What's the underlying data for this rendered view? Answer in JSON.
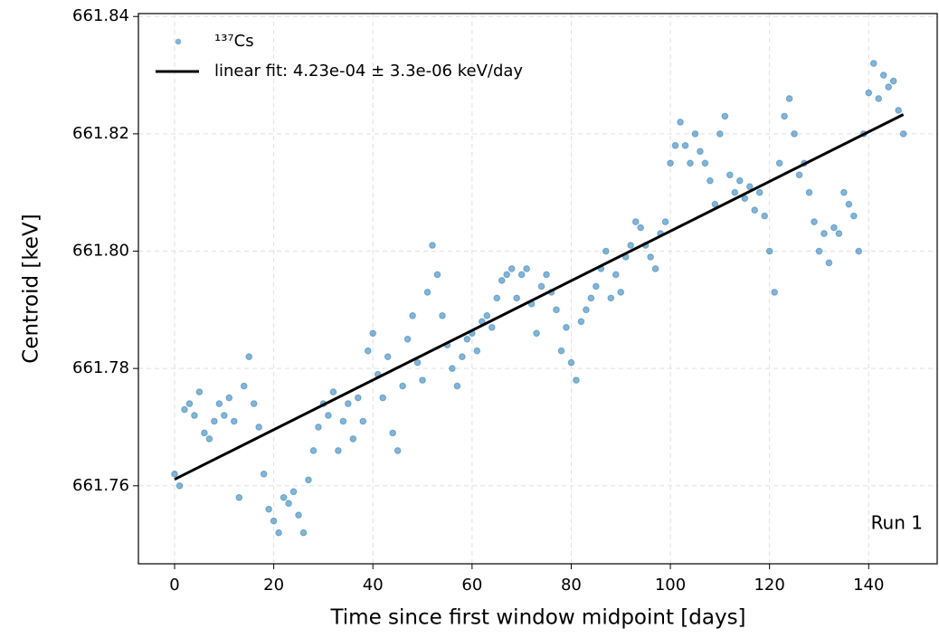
{
  "chart_data": {
    "type": "scatter",
    "x_label": "Time since first window midpoint [days]",
    "y_label": "Centroid [keV]",
    "annotation": "Run 1",
    "grid": true,
    "legend_position": "upper left",
    "xlim": [
      -7.3,
      154.0
    ],
    "ylim": [
      661.7467,
      661.8405
    ],
    "xticks": [
      0,
      20,
      40,
      60,
      80,
      100,
      120,
      140
    ],
    "yticks": [
      661.76,
      661.78,
      {
        "value": 661.8,
        "label": "661.80"
      },
      661.82,
      661.84
    ],
    "series": [
      {
        "name": "¹³⁷Cs",
        "color": "#1f77b4",
        "kind": "points",
        "x": [
          0,
          1,
          2,
          3,
          4,
          5,
          6,
          7,
          8,
          9,
          10,
          11,
          12,
          13,
          14,
          15,
          16,
          17,
          18,
          19,
          20,
          21,
          22,
          23,
          24,
          25,
          26,
          27,
          28,
          29,
          30,
          31,
          32,
          33,
          34,
          35,
          36,
          37,
          38,
          39,
          40,
          41,
          42,
          43,
          44,
          45,
          46,
          47,
          48,
          49,
          50,
          51,
          52,
          53,
          54,
          55,
          56,
          57,
          58,
          59,
          60,
          61,
          62,
          63,
          64,
          65,
          66,
          67,
          68,
          69,
          70,
          71,
          72,
          73,
          74,
          75,
          76,
          77,
          78,
          79,
          80,
          81,
          82,
          83,
          84,
          85,
          86,
          87,
          88,
          89,
          90,
          91,
          92,
          93,
          94,
          95,
          96,
          97,
          98,
          99,
          100,
          101,
          102,
          103,
          104,
          105,
          106,
          107,
          108,
          109,
          110,
          111,
          112,
          113,
          114,
          115,
          116,
          117,
          118,
          119,
          120,
          121,
          122,
          123,
          124,
          125,
          126,
          127,
          128,
          129,
          130,
          131,
          132,
          133,
          134,
          135,
          136,
          137,
          138,
          139,
          140,
          141,
          142,
          143,
          144,
          145,
          146,
          147
        ],
        "values": [
          661.762,
          661.76,
          661.773,
          661.774,
          661.772,
          661.776,
          661.769,
          661.768,
          661.771,
          661.774,
          661.772,
          661.775,
          661.771,
          661.758,
          661.777,
          661.782,
          661.774,
          661.77,
          661.762,
          661.756,
          661.754,
          661.752,
          661.758,
          661.757,
          661.759,
          661.755,
          661.752,
          661.761,
          661.766,
          661.77,
          661.774,
          661.772,
          661.776,
          661.766,
          661.771,
          661.774,
          661.768,
          661.775,
          661.771,
          661.783,
          661.786,
          661.779,
          661.775,
          661.782,
          661.769,
          661.766,
          661.777,
          661.785,
          661.789,
          661.781,
          661.778,
          661.793,
          661.801,
          661.796,
          661.789,
          661.784,
          661.78,
          661.777,
          661.782,
          661.785,
          661.786,
          661.783,
          661.788,
          661.789,
          661.787,
          661.792,
          661.795,
          661.796,
          661.797,
          661.792,
          661.796,
          661.797,
          661.791,
          661.786,
          661.794,
          661.796,
          661.793,
          661.79,
          661.783,
          661.787,
          661.781,
          661.778,
          661.788,
          661.79,
          661.792,
          661.794,
          661.797,
          661.8,
          661.792,
          661.796,
          661.793,
          661.799,
          661.801,
          661.805,
          661.804,
          661.801,
          661.799,
          661.797,
          661.803,
          661.805,
          661.815,
          661.818,
          661.822,
          661.818,
          661.815,
          661.82,
          661.817,
          661.815,
          661.812,
          661.808,
          661.82,
          661.823,
          661.813,
          661.81,
          661.812,
          661.809,
          661.811,
          661.807,
          661.81,
          661.806,
          661.8,
          661.793,
          661.815,
          661.823,
          661.826,
          661.82,
          661.813,
          661.815,
          661.81,
          661.805,
          661.8,
          661.803,
          661.798,
          661.804,
          661.803,
          661.81,
          661.808,
          661.806,
          661.8,
          661.82,
          661.827,
          661.832,
          661.826,
          661.83,
          661.828,
          661.829,
          661.824,
          661.82
        ]
      },
      {
        "name": "linear fit: 4.23e-04 ± 3.3e-06 keV/day",
        "color": "#000000",
        "kind": "line",
        "x": [
          0,
          147
        ],
        "values": [
          661.7611,
          661.8233
        ]
      }
    ]
  }
}
